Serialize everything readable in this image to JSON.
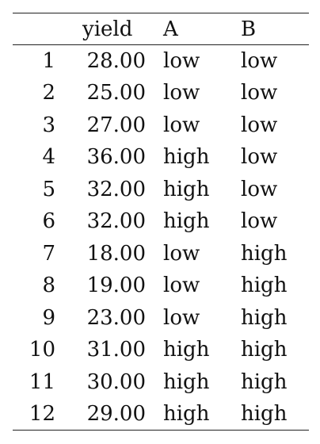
{
  "table": {
    "columns": {
      "index": "",
      "yield": "yield",
      "a": "A",
      "b": "B"
    },
    "rows": [
      {
        "index": "1",
        "yield": "28.00",
        "a": "low",
        "b": "low"
      },
      {
        "index": "2",
        "yield": "25.00",
        "a": "low",
        "b": "low"
      },
      {
        "index": "3",
        "yield": "27.00",
        "a": "low",
        "b": "low"
      },
      {
        "index": "4",
        "yield": "36.00",
        "a": "high",
        "b": "low"
      },
      {
        "index": "5",
        "yield": "32.00",
        "a": "high",
        "b": "low"
      },
      {
        "index": "6",
        "yield": "32.00",
        "a": "high",
        "b": "low"
      },
      {
        "index": "7",
        "yield": "18.00",
        "a": "low",
        "b": "high"
      },
      {
        "index": "8",
        "yield": "19.00",
        "a": "low",
        "b": "high"
      },
      {
        "index": "9",
        "yield": "23.00",
        "a": "low",
        "b": "high"
      },
      {
        "index": "10",
        "yield": "31.00",
        "a": "high",
        "b": "high"
      },
      {
        "index": "11",
        "yield": "30.00",
        "a": "high",
        "b": "high"
      },
      {
        "index": "12",
        "yield": "29.00",
        "a": "high",
        "b": "high"
      }
    ]
  }
}
